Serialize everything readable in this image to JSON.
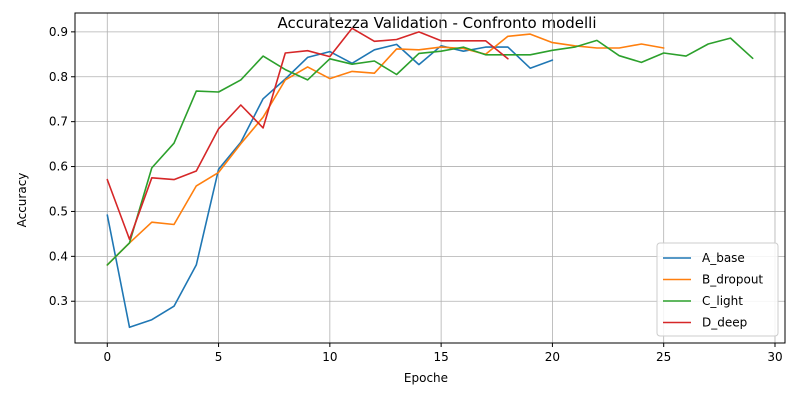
{
  "chart_data": {
    "type": "line",
    "title": "Accuratezza Validation - Confronto modelli",
    "xlabel": "Epoche",
    "ylabel": "Accuracy",
    "xlim": [
      -1.45,
      30.45
    ],
    "ylim": [
      0.207,
      0.942
    ],
    "xticks": [
      0,
      5,
      10,
      15,
      20,
      25,
      30
    ],
    "yticks": [
      0.3,
      0.4,
      0.5,
      0.6,
      0.7,
      0.8,
      0.9
    ],
    "xtick_labels": [
      "0",
      "5",
      "10",
      "15",
      "20",
      "25",
      "30"
    ],
    "ytick_labels": [
      "0.3",
      "0.4",
      "0.5",
      "0.6",
      "0.7",
      "0.8",
      "0.9"
    ],
    "grid": true,
    "legend_position": "lower-right",
    "series": [
      {
        "name": "A_base",
        "color": "#1f77b4",
        "x": [
          0,
          1,
          2,
          3,
          4,
          5,
          6,
          7,
          8,
          9,
          10,
          11,
          12,
          13,
          14,
          15,
          16,
          17,
          18,
          19,
          20
        ],
        "values": [
          0.492,
          0.242,
          0.259,
          0.289,
          0.381,
          0.594,
          0.654,
          0.751,
          0.795,
          0.843,
          0.856,
          0.83,
          0.86,
          0.872,
          0.827,
          0.869,
          0.857,
          0.866,
          0.866,
          0.819,
          0.837
        ]
      },
      {
        "name": "B_dropout",
        "color": "#ff7f0e",
        "x": [
          0,
          1,
          2,
          3,
          4,
          5,
          6,
          7,
          8,
          9,
          10,
          11,
          12,
          13,
          14,
          15,
          16,
          17,
          18,
          19,
          20,
          21,
          22,
          23,
          24,
          25
        ],
        "values": [
          0.381,
          0.43,
          0.476,
          0.471,
          0.557,
          0.587,
          0.651,
          0.71,
          0.793,
          0.822,
          0.796,
          0.812,
          0.808,
          0.862,
          0.86,
          0.866,
          0.863,
          0.85,
          0.89,
          0.895,
          0.876,
          0.869,
          0.864,
          0.864,
          0.873,
          0.864
        ]
      },
      {
        "name": "C_light",
        "color": "#2ca02c",
        "x": [
          0,
          1,
          2,
          3,
          4,
          5,
          6,
          7,
          8,
          9,
          10,
          11,
          12,
          13,
          14,
          15,
          16,
          17,
          18,
          19,
          20,
          21,
          22,
          23,
          24,
          25,
          26,
          27,
          28,
          29
        ],
        "values": [
          0.381,
          0.43,
          0.597,
          0.652,
          0.768,
          0.766,
          0.793,
          0.846,
          0.816,
          0.793,
          0.84,
          0.828,
          0.835,
          0.805,
          0.852,
          0.857,
          0.866,
          0.849,
          0.849,
          0.849,
          0.859,
          0.866,
          0.881,
          0.847,
          0.832,
          0.853,
          0.846,
          0.873,
          0.886,
          0.841
        ]
      },
      {
        "name": "D_deep",
        "color": "#d62728",
        "x": [
          0,
          1,
          2,
          3,
          4,
          5,
          6,
          7,
          8,
          9,
          10,
          11,
          12,
          13,
          14,
          15,
          16,
          17,
          18
        ],
        "values": [
          0.571,
          0.438,
          0.575,
          0.571,
          0.59,
          0.684,
          0.737,
          0.686,
          0.853,
          0.858,
          0.845,
          0.908,
          0.879,
          0.883,
          0.9,
          0.88,
          0.88,
          0.88,
          0.84
        ]
      }
    ]
  }
}
